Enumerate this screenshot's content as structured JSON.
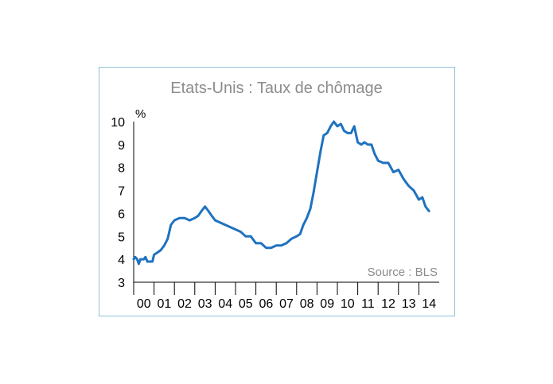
{
  "chart_data": {
    "type": "line",
    "title": "Etats-Unis : Taux de chômage",
    "unit_label": "%",
    "source": "Source : BLS",
    "ylim": [
      3,
      10
    ],
    "yticks": [
      "3",
      "4",
      "5",
      "6",
      "7",
      "8",
      "9",
      "10"
    ],
    "categories": [
      "00",
      "01",
      "02",
      "03",
      "04",
      "05",
      "06",
      "07",
      "08",
      "09",
      "10",
      "11",
      "12",
      "13",
      "14"
    ],
    "grid": false,
    "legend": "none",
    "line_color": "#1f72bf",
    "x": [
      2000.0,
      2000.08,
      2000.17,
      2000.25,
      2000.33,
      2000.42,
      2000.5,
      2000.58,
      2000.67,
      2000.75,
      2000.83,
      2000.92,
      2001.0,
      2001.17,
      2001.33,
      2001.5,
      2001.67,
      2001.83,
      2002.0,
      2002.25,
      2002.5,
      2002.75,
      2003.0,
      2003.17,
      2003.33,
      2003.5,
      2003.67,
      2003.83,
      2004.0,
      2004.25,
      2004.5,
      2004.75,
      2005.0,
      2005.25,
      2005.5,
      2005.75,
      2006.0,
      2006.25,
      2006.5,
      2006.75,
      2007.0,
      2007.25,
      2007.5,
      2007.75,
      2008.0,
      2008.17,
      2008.33,
      2008.5,
      2008.67,
      2008.83,
      2009.0,
      2009.17,
      2009.33,
      2009.5,
      2009.67,
      2009.83,
      2010.0,
      2010.17,
      2010.33,
      2010.5,
      2010.67,
      2010.83,
      2011.0,
      2011.17,
      2011.33,
      2011.5,
      2011.67,
      2011.83,
      2012.0,
      2012.25,
      2012.5,
      2012.75,
      2013.0,
      2013.25,
      2013.5,
      2013.75,
      2014.0,
      2014.17,
      2014.33,
      2014.5
    ],
    "values": [
      4.0,
      4.1,
      4.0,
      3.8,
      4.0,
      4.0,
      4.0,
      4.1,
      3.9,
      3.9,
      3.9,
      3.9,
      4.2,
      4.3,
      4.4,
      4.6,
      4.9,
      5.5,
      5.7,
      5.8,
      5.8,
      5.7,
      5.8,
      5.9,
      6.1,
      6.3,
      6.1,
      5.9,
      5.7,
      5.6,
      5.5,
      5.4,
      5.3,
      5.2,
      5.0,
      5.0,
      4.7,
      4.7,
      4.5,
      4.5,
      4.6,
      4.6,
      4.7,
      4.9,
      5.0,
      5.1,
      5.5,
      5.8,
      6.2,
      6.9,
      7.8,
      8.7,
      9.4,
      9.5,
      9.8,
      10.0,
      9.8,
      9.9,
      9.6,
      9.5,
      9.5,
      9.8,
      9.1,
      9.0,
      9.1,
      9.0,
      9.0,
      8.6,
      8.3,
      8.2,
      8.2,
      7.8,
      7.9,
      7.5,
      7.2,
      7.0,
      6.6,
      6.7,
      6.3,
      6.1
    ]
  }
}
